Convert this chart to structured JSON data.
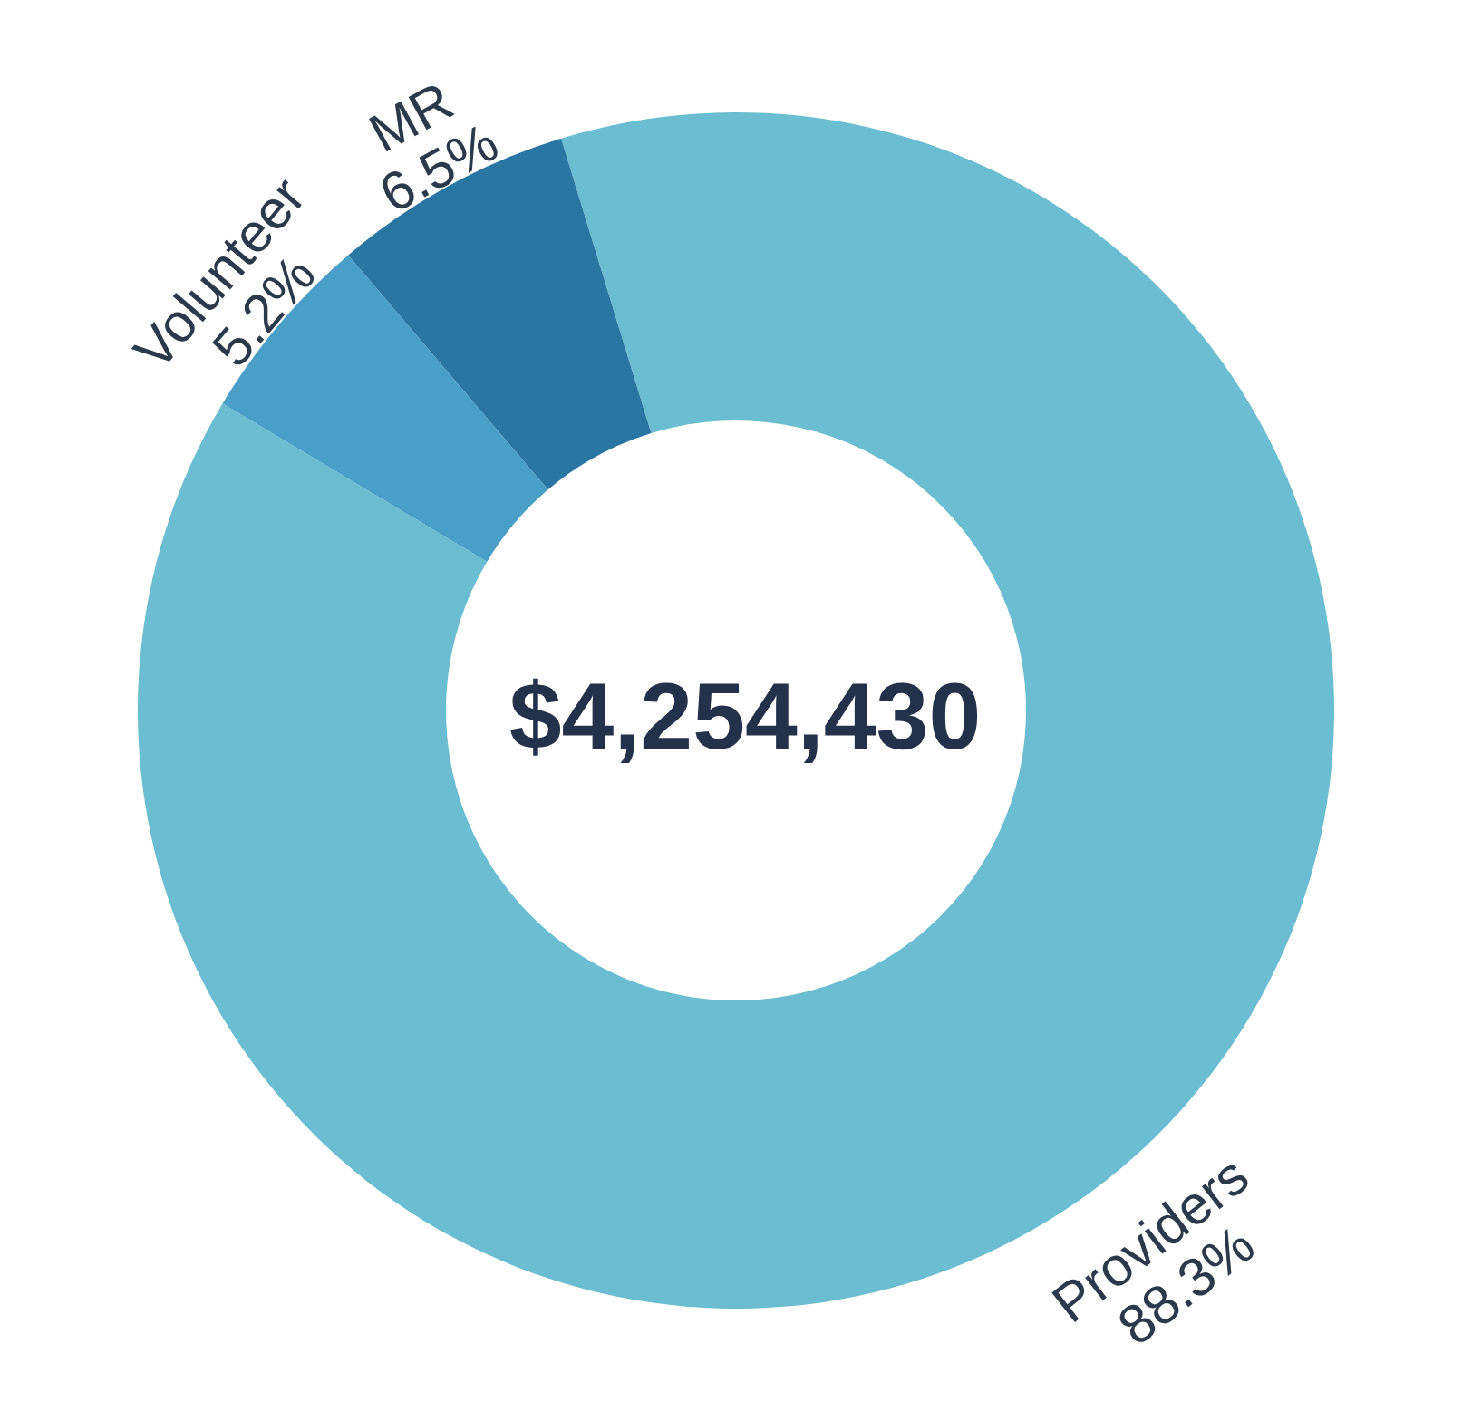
{
  "chart_data": {
    "type": "donut",
    "categories": [
      "Providers",
      "Volunteer",
      "MR"
    ],
    "values": [
      88.3,
      5.2,
      6.5
    ],
    "value_labels": [
      "88.3%",
      "5.2%",
      "6.5%"
    ],
    "colors": [
      "#6bbdd1",
      "#4a9fc8",
      "#2a76a2"
    ],
    "annotations": [
      "$4,254,430"
    ],
    "legend": false
  }
}
